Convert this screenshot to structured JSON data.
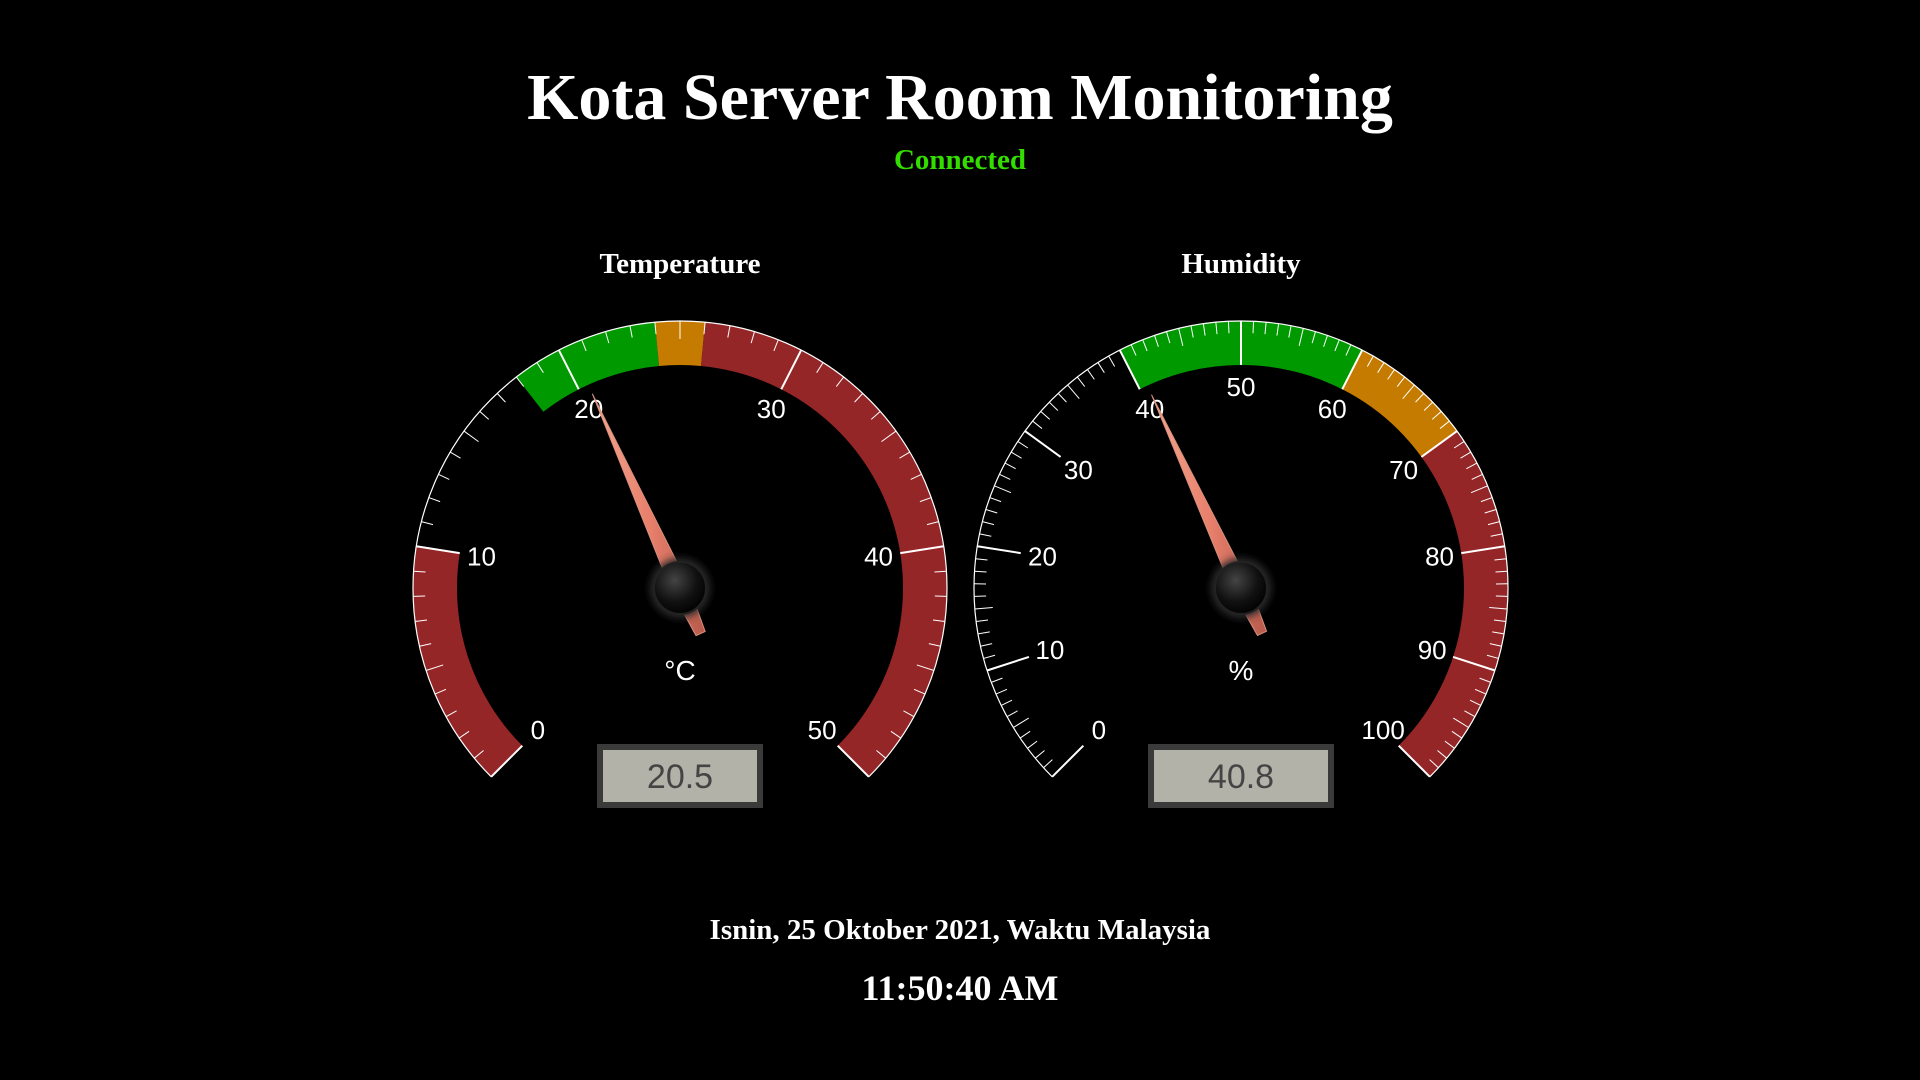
{
  "header": {
    "title": "Kota Server Room Monitoring",
    "status": "Connected",
    "status_color": "#33dd00"
  },
  "gauges": [
    {
      "id": "temperature",
      "label": "Temperature",
      "unit": "°C",
      "value": 20.5,
      "value_display": "20.5",
      "min": 0,
      "max": 50,
      "major_ticks": [
        0,
        10,
        20,
        30,
        40,
        50
      ],
      "minor_per_major": 10,
      "zones": [
        {
          "from": 0,
          "to": 10,
          "color": "#952628"
        },
        {
          "from": 18,
          "to": 24,
          "color": "#009900"
        },
        {
          "from": 24,
          "to": 26,
          "color": "#c57a00"
        },
        {
          "from": 26,
          "to": 50,
          "color": "#952628"
        }
      ]
    },
    {
      "id": "humidity",
      "label": "Humidity",
      "unit": "%",
      "value": 40.8,
      "value_display": "40.8",
      "min": 0,
      "max": 100,
      "major_ticks": [
        0,
        10,
        20,
        30,
        40,
        50,
        60,
        70,
        80,
        90,
        100
      ],
      "minor_per_major": 10,
      "zones": [
        {
          "from": 40,
          "to": 60,
          "color": "#009900"
        },
        {
          "from": 60,
          "to": 70,
          "color": "#c57a00"
        },
        {
          "from": 70,
          "to": 100,
          "color": "#952628"
        }
      ]
    }
  ],
  "footer": {
    "date": "Isnin, 25 Oktober 2021, Waktu Malaysia",
    "time": "11:50:40 AM"
  }
}
